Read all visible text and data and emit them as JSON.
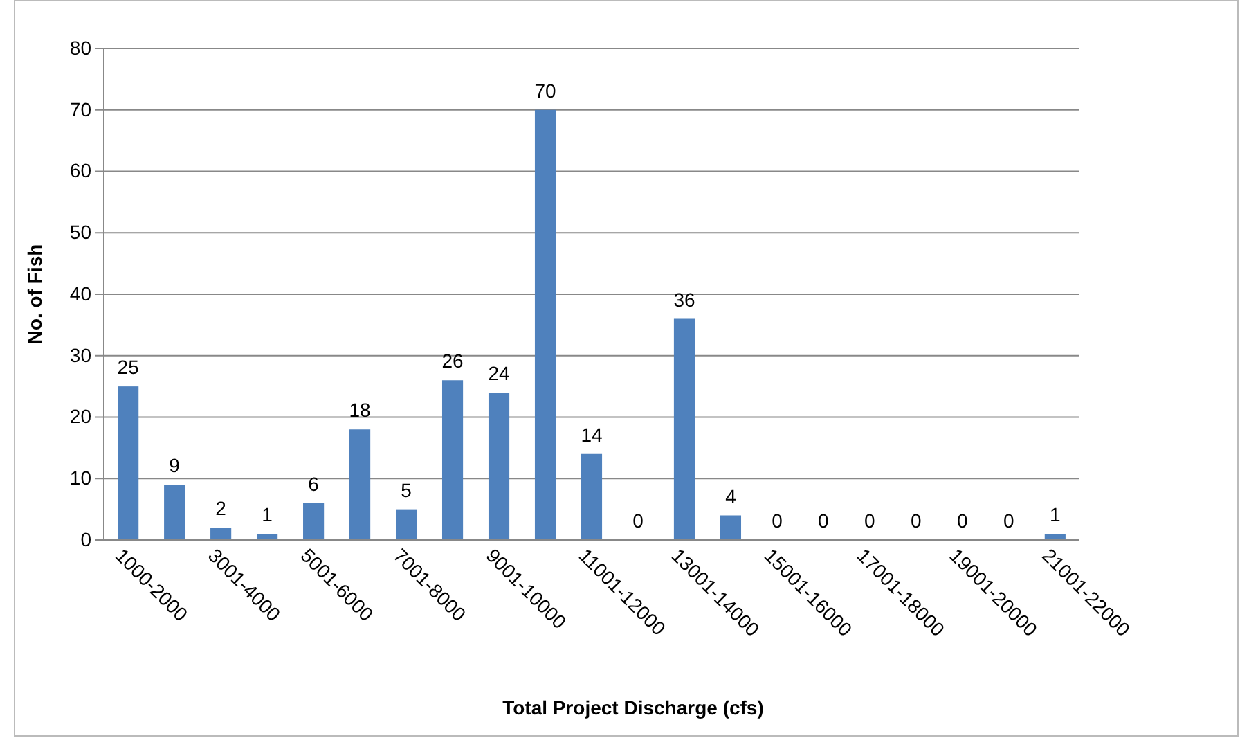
{
  "chart_data": {
    "type": "bar",
    "xlabel": "Total Project Discharge (cfs)",
    "ylabel": "No. of Fish",
    "categories": [
      "1000-2000",
      null,
      "3001-4000",
      null,
      "5001-6000",
      null,
      "7001-8000",
      null,
      "9001-10000",
      null,
      "11001-12000",
      null,
      "13001-14000",
      null,
      "15001-16000",
      null,
      "17001-18000",
      null,
      "19001-20000",
      null,
      "21001-22000"
    ],
    "values": [
      25,
      9,
      2,
      1,
      6,
      18,
      5,
      26,
      24,
      70,
      14,
      0,
      36,
      4,
      0,
      0,
      0,
      0,
      0,
      0,
      1
    ],
    "color": "#4f81bd",
    "ylim": [
      0,
      80
    ],
    "yticks": [
      0,
      10,
      20,
      30,
      40,
      50,
      60,
      70,
      80
    ],
    "grid": "y",
    "data_labels": true
  }
}
